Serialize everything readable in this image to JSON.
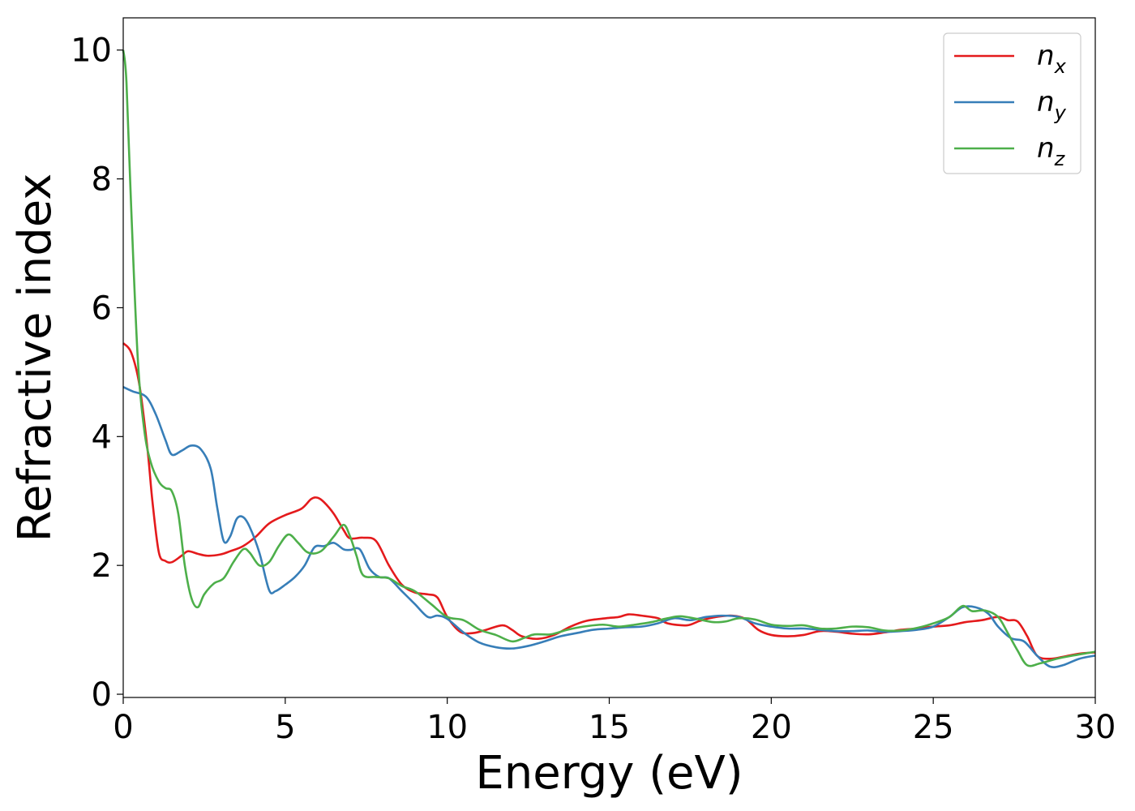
{
  "chart_data": {
    "type": "line",
    "xlabel": "Energy (eV)",
    "ylabel": "Refractive index",
    "xlim": [
      0,
      30
    ],
    "ylim": [
      -0.05,
      10.5
    ],
    "xticks": [
      "0",
      "5",
      "10",
      "15",
      "20",
      "25",
      "30"
    ],
    "yticks": [
      "0",
      "2",
      "4",
      "6",
      "8",
      "10"
    ],
    "grid": false,
    "legend_position": "top-right",
    "series": [
      {
        "name": "n",
        "subscript": "x",
        "color": "#e41a1c",
        "points": [
          [
            0,
            5.45
          ],
          [
            0.25,
            5.3
          ],
          [
            0.5,
            4.8
          ],
          [
            0.75,
            3.8
          ],
          [
            0.9,
            3.0
          ],
          [
            1.1,
            2.2
          ],
          [
            1.3,
            2.07
          ],
          [
            1.5,
            2.05
          ],
          [
            1.8,
            2.15
          ],
          [
            2.0,
            2.22
          ],
          [
            2.3,
            2.18
          ],
          [
            2.6,
            2.15
          ],
          [
            3.0,
            2.17
          ],
          [
            3.3,
            2.22
          ],
          [
            3.7,
            2.3
          ],
          [
            4.1,
            2.45
          ],
          [
            4.5,
            2.65
          ],
          [
            5.0,
            2.78
          ],
          [
            5.5,
            2.88
          ],
          [
            5.8,
            3.03
          ],
          [
            6.0,
            3.05
          ],
          [
            6.2,
            2.98
          ],
          [
            6.5,
            2.8
          ],
          [
            6.8,
            2.55
          ],
          [
            7.0,
            2.42
          ],
          [
            7.4,
            2.43
          ],
          [
            7.8,
            2.38
          ],
          [
            8.2,
            2.0
          ],
          [
            8.6,
            1.7
          ],
          [
            9.0,
            1.58
          ],
          [
            9.4,
            1.55
          ],
          [
            9.7,
            1.5
          ],
          [
            10.0,
            1.2
          ],
          [
            10.4,
            0.97
          ],
          [
            10.8,
            0.95
          ],
          [
            11.2,
            1.0
          ],
          [
            11.7,
            1.07
          ],
          [
            12.0,
            1.0
          ],
          [
            12.3,
            0.9
          ],
          [
            12.8,
            0.86
          ],
          [
            13.3,
            0.92
          ],
          [
            13.8,
            1.05
          ],
          [
            14.3,
            1.14
          ],
          [
            14.9,
            1.18
          ],
          [
            15.3,
            1.2
          ],
          [
            15.6,
            1.24
          ],
          [
            16.0,
            1.22
          ],
          [
            16.5,
            1.18
          ],
          [
            16.8,
            1.1
          ],
          [
            17.4,
            1.07
          ],
          [
            17.8,
            1.14
          ],
          [
            18.3,
            1.2
          ],
          [
            18.8,
            1.22
          ],
          [
            19.2,
            1.17
          ],
          [
            19.6,
            1.0
          ],
          [
            20.0,
            0.92
          ],
          [
            20.5,
            0.9
          ],
          [
            21.0,
            0.92
          ],
          [
            21.5,
            0.98
          ],
          [
            22.0,
            0.97
          ],
          [
            22.5,
            0.94
          ],
          [
            23.0,
            0.93
          ],
          [
            23.5,
            0.96
          ],
          [
            24.0,
            1.0
          ],
          [
            24.5,
            1.02
          ],
          [
            25.0,
            1.05
          ],
          [
            25.5,
            1.07
          ],
          [
            26.0,
            1.12
          ],
          [
            26.5,
            1.15
          ],
          [
            27.0,
            1.2
          ],
          [
            27.3,
            1.15
          ],
          [
            27.6,
            1.13
          ],
          [
            27.9,
            0.9
          ],
          [
            28.2,
            0.6
          ],
          [
            28.6,
            0.55
          ],
          [
            29.0,
            0.58
          ],
          [
            29.5,
            0.63
          ],
          [
            30,
            0.65
          ]
        ]
      },
      {
        "name": "n",
        "subscript": "y",
        "color": "#377eb8",
        "points": [
          [
            0,
            4.77
          ],
          [
            0.3,
            4.7
          ],
          [
            0.7,
            4.62
          ],
          [
            1.0,
            4.35
          ],
          [
            1.3,
            3.95
          ],
          [
            1.5,
            3.72
          ],
          [
            1.8,
            3.78
          ],
          [
            2.1,
            3.86
          ],
          [
            2.4,
            3.8
          ],
          [
            2.7,
            3.5
          ],
          [
            2.9,
            2.9
          ],
          [
            3.1,
            2.38
          ],
          [
            3.3,
            2.45
          ],
          [
            3.5,
            2.72
          ],
          [
            3.7,
            2.75
          ],
          [
            3.9,
            2.6
          ],
          [
            4.2,
            2.2
          ],
          [
            4.5,
            1.62
          ],
          [
            4.7,
            1.6
          ],
          [
            5.0,
            1.7
          ],
          [
            5.3,
            1.82
          ],
          [
            5.6,
            2.0
          ],
          [
            5.9,
            2.28
          ],
          [
            6.2,
            2.3
          ],
          [
            6.5,
            2.35
          ],
          [
            6.8,
            2.25
          ],
          [
            7.0,
            2.24
          ],
          [
            7.3,
            2.25
          ],
          [
            7.6,
            1.95
          ],
          [
            7.9,
            1.82
          ],
          [
            8.2,
            1.8
          ],
          [
            8.6,
            1.6
          ],
          [
            9.0,
            1.4
          ],
          [
            9.4,
            1.2
          ],
          [
            9.7,
            1.22
          ],
          [
            10.0,
            1.17
          ],
          [
            10.5,
            0.96
          ],
          [
            11.0,
            0.8
          ],
          [
            11.5,
            0.73
          ],
          [
            12.0,
            0.71
          ],
          [
            12.5,
            0.75
          ],
          [
            13.0,
            0.82
          ],
          [
            13.5,
            0.9
          ],
          [
            14.0,
            0.95
          ],
          [
            14.5,
            1.0
          ],
          [
            15.0,
            1.02
          ],
          [
            15.5,
            1.04
          ],
          [
            16.0,
            1.05
          ],
          [
            16.5,
            1.1
          ],
          [
            17.0,
            1.18
          ],
          [
            17.5,
            1.15
          ],
          [
            18.0,
            1.2
          ],
          [
            18.5,
            1.22
          ],
          [
            19.0,
            1.2
          ],
          [
            19.5,
            1.1
          ],
          [
            20.0,
            1.05
          ],
          [
            20.5,
            1.02
          ],
          [
            21.0,
            1.02
          ],
          [
            21.5,
            1.0
          ],
          [
            22.0,
            0.98
          ],
          [
            22.5,
            0.98
          ],
          [
            23.0,
            0.99
          ],
          [
            23.5,
            0.97
          ],
          [
            24.0,
            0.98
          ],
          [
            24.5,
            1.0
          ],
          [
            25.0,
            1.05
          ],
          [
            25.5,
            1.2
          ],
          [
            25.9,
            1.35
          ],
          [
            26.3,
            1.35
          ],
          [
            26.7,
            1.25
          ],
          [
            27.0,
            1.05
          ],
          [
            27.4,
            0.87
          ],
          [
            27.8,
            0.82
          ],
          [
            28.2,
            0.6
          ],
          [
            28.6,
            0.43
          ],
          [
            29.0,
            0.45
          ],
          [
            29.5,
            0.55
          ],
          [
            30,
            0.6
          ]
        ]
      },
      {
        "name": "n",
        "subscript": "z",
        "color": "#4daf4a",
        "points": [
          [
            0,
            10.0
          ],
          [
            0.1,
            9.5
          ],
          [
            0.25,
            7.5
          ],
          [
            0.45,
            5.2
          ],
          [
            0.65,
            4.1
          ],
          [
            0.85,
            3.6
          ],
          [
            1.1,
            3.3
          ],
          [
            1.3,
            3.2
          ],
          [
            1.5,
            3.15
          ],
          [
            1.7,
            2.8
          ],
          [
            1.9,
            2.0
          ],
          [
            2.1,
            1.5
          ],
          [
            2.3,
            1.35
          ],
          [
            2.5,
            1.55
          ],
          [
            2.8,
            1.72
          ],
          [
            3.1,
            1.8
          ],
          [
            3.4,
            2.05
          ],
          [
            3.7,
            2.25
          ],
          [
            3.9,
            2.2
          ],
          [
            4.2,
            2.0
          ],
          [
            4.5,
            2.05
          ],
          [
            4.8,
            2.3
          ],
          [
            5.1,
            2.48
          ],
          [
            5.4,
            2.35
          ],
          [
            5.7,
            2.2
          ],
          [
            6.1,
            2.22
          ],
          [
            6.5,
            2.45
          ],
          [
            6.8,
            2.63
          ],
          [
            7.0,
            2.45
          ],
          [
            7.2,
            2.15
          ],
          [
            7.4,
            1.85
          ],
          [
            7.8,
            1.82
          ],
          [
            8.2,
            1.8
          ],
          [
            8.6,
            1.68
          ],
          [
            9.0,
            1.6
          ],
          [
            9.5,
            1.4
          ],
          [
            10.0,
            1.2
          ],
          [
            10.5,
            1.15
          ],
          [
            11.0,
            1.0
          ],
          [
            11.5,
            0.92
          ],
          [
            12.0,
            0.82
          ],
          [
            12.4,
            0.88
          ],
          [
            12.7,
            0.93
          ],
          [
            13.2,
            0.93
          ],
          [
            13.7,
            1.0
          ],
          [
            14.2,
            1.05
          ],
          [
            14.8,
            1.08
          ],
          [
            15.3,
            1.05
          ],
          [
            15.8,
            1.08
          ],
          [
            16.3,
            1.12
          ],
          [
            16.8,
            1.18
          ],
          [
            17.2,
            1.21
          ],
          [
            17.7,
            1.17
          ],
          [
            18.2,
            1.12
          ],
          [
            18.6,
            1.13
          ],
          [
            19.0,
            1.18
          ],
          [
            19.5,
            1.16
          ],
          [
            20.0,
            1.08
          ],
          [
            20.5,
            1.06
          ],
          [
            21.0,
            1.07
          ],
          [
            21.5,
            1.02
          ],
          [
            22.0,
            1.02
          ],
          [
            22.5,
            1.05
          ],
          [
            23.0,
            1.04
          ],
          [
            23.5,
            0.99
          ],
          [
            24.0,
            0.99
          ],
          [
            24.5,
            1.03
          ],
          [
            25.0,
            1.1
          ],
          [
            25.5,
            1.2
          ],
          [
            25.9,
            1.37
          ],
          [
            26.2,
            1.29
          ],
          [
            26.6,
            1.3
          ],
          [
            27.0,
            1.2
          ],
          [
            27.3,
            0.95
          ],
          [
            27.6,
            0.68
          ],
          [
            27.9,
            0.45
          ],
          [
            28.3,
            0.48
          ],
          [
            28.8,
            0.55
          ],
          [
            29.3,
            0.6
          ],
          [
            30,
            0.66
          ]
        ]
      }
    ]
  }
}
